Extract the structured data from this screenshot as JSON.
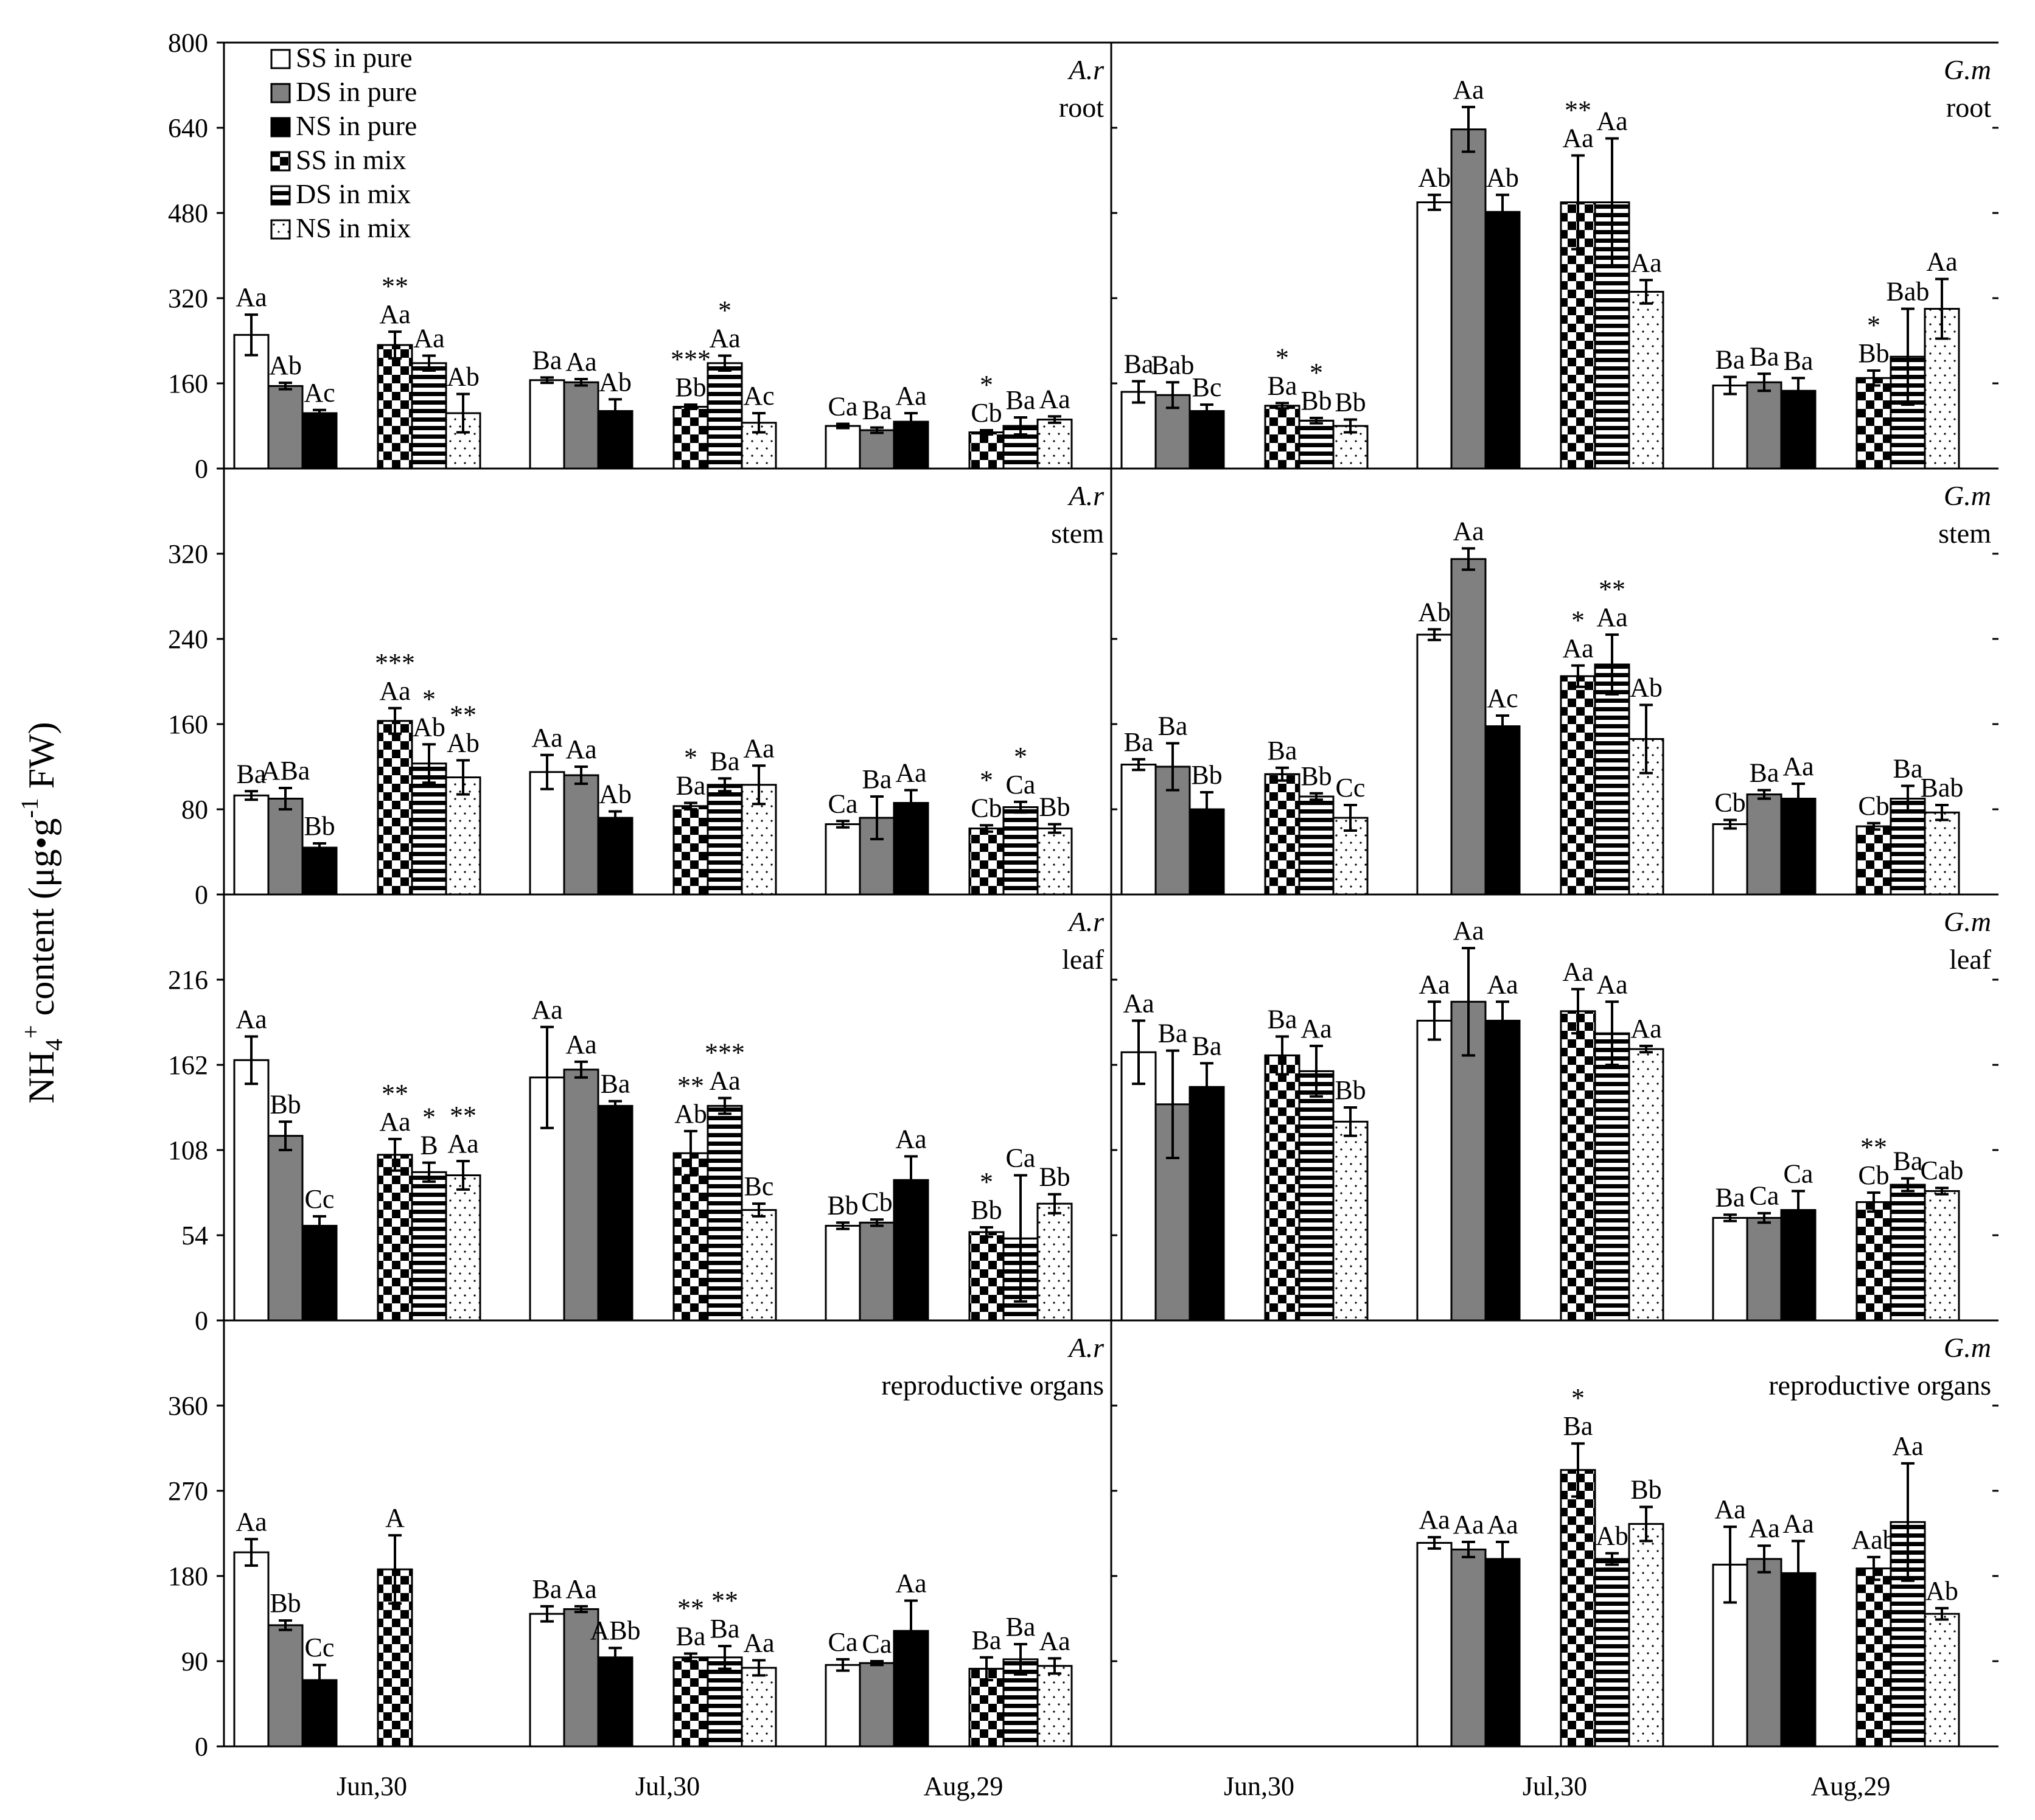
{
  "figure": {
    "ylabel": "NH4+ content (μg•g-1 FW)",
    "ylabel_main": "NH",
    "ylabel_sub": "4",
    "ylabel_sup1": "+",
    "ylabel_mid": " content (μg•g",
    "ylabel_sup2": "-1",
    "ylabel_end": " FW)",
    "dates": [
      "Jun,30",
      "Jul,30",
      "Aug,29"
    ]
  },
  "legend": [
    "SS in pure",
    "DS in pure",
    "NS in pure",
    "SS in mix",
    "DS in mix",
    "NS in mix"
  ],
  "chart_data": [
    {
      "type": "bar",
      "species": "A.r",
      "organ": "root",
      "ylim": [
        0,
        800
      ],
      "yticks": [
        0,
        160,
        320,
        480,
        640,
        800
      ],
      "categories": [
        "Jun,30",
        "Jul,30",
        "Aug,29"
      ],
      "series": [
        {
          "name": "SS in pure",
          "values": [
            251,
            166,
            80
          ],
          "errors": [
            38,
            5,
            4
          ],
          "labels": [
            "Aa",
            "Ba",
            "Ca"
          ]
        },
        {
          "name": "DS in pure",
          "values": [
            155,
            162,
            72
          ],
          "errors": [
            6,
            6,
            5
          ],
          "labels": [
            "Ab",
            "Aa",
            "Ba"
          ]
        },
        {
          "name": "NS in pure",
          "values": [
            104,
            108,
            88
          ],
          "errors": [
            6,
            22,
            16
          ],
          "labels": [
            "Ac",
            "Ab",
            "Aa"
          ]
        },
        {
          "name": "SS in mix",
          "values": [
            232,
            116,
            68
          ],
          "errors": [
            25,
            4,
            4
          ],
          "labels": [
            "Aa",
            "Bb",
            "Cb"
          ]
        },
        {
          "name": "DS in mix",
          "values": [
            198,
            198,
            80
          ],
          "errors": [
            14,
            14,
            16
          ],
          "labels": [
            "Aa",
            "Aa",
            "Ba"
          ]
        },
        {
          "name": "NS in mix",
          "values": [
            104,
            86,
            92
          ],
          "errors": [
            36,
            18,
            6
          ],
          "labels": [
            "Ab",
            "Ac",
            "Aa"
          ]
        }
      ],
      "significance": [
        {
          "category": "Jun,30",
          "text": "**"
        },
        {
          "category": "Jul,30",
          "text": "***"
        },
        {
          "category": "Jul,30",
          "text": "*"
        },
        {
          "category": "Aug,29",
          "text": "*"
        }
      ]
    },
    {
      "type": "bar",
      "species": "G.m",
      "organ": "root",
      "ylim": [
        0,
        800
      ],
      "yticks": [
        0,
        160,
        320,
        480,
        640,
        800
      ],
      "categories": [
        "Jun,30",
        "Jul,30",
        "Aug,29"
      ],
      "series": [
        {
          "name": "SS in pure",
          "values": [
            144,
            500,
            156
          ],
          "errors": [
            20,
            14,
            16
          ],
          "labels": [
            "Ba",
            "Ab",
            "Ba"
          ]
        },
        {
          "name": "DS in pure",
          "values": [
            138,
            637,
            162
          ],
          "errors": [
            24,
            42,
            16
          ],
          "labels": [
            "Bab",
            "Aa",
            "Ba"
          ]
        },
        {
          "name": "NS in pure",
          "values": [
            108,
            482,
            146
          ],
          "errors": [
            12,
            32,
            24
          ],
          "labels": [
            "Bc",
            "Ab",
            "Ba"
          ]
        },
        {
          "name": "SS in mix",
          "values": [
            118,
            500,
            170
          ],
          "errors": [
            5,
            88,
            14
          ],
          "labels": [
            "Ba",
            "Aa",
            "Bb"
          ]
        },
        {
          "name": "DS in mix",
          "values": [
            90,
            500,
            210
          ],
          "errors": [
            5,
            120,
            90
          ],
          "labels": [
            "Bb",
            "Aa",
            "Bab"
          ]
        },
        {
          "name": "NS in mix",
          "values": [
            80,
            332,
            300
          ],
          "errors": [
            12,
            22,
            56
          ],
          "labels": [
            "Bb",
            "Aa",
            "Aa"
          ]
        }
      ],
      "significance": [
        {
          "category": "Jun,30",
          "text": "*"
        },
        {
          "category": "Jun,30",
          "text": "*"
        },
        {
          "category": "Jul,30",
          "text": "**"
        },
        {
          "category": "Aug,29",
          "text": "*"
        }
      ]
    },
    {
      "type": "bar",
      "species": "A.r",
      "organ": "stem",
      "ylim": [
        0,
        400
      ],
      "yticks": [
        0,
        80,
        160,
        240,
        320
      ],
      "categories": [
        "Jun,30",
        "Jul,30",
        "Aug,29"
      ],
      "series": [
        {
          "name": "SS in pure",
          "values": [
            93,
            115,
            66
          ],
          "errors": [
            4,
            16,
            3
          ],
          "labels": [
            "Ba",
            "Aa",
            "Ca"
          ]
        },
        {
          "name": "DS in pure",
          "values": [
            90,
            112,
            72
          ],
          "errors": [
            10,
            8,
            20
          ],
          "labels": [
            "ABa",
            "Aa",
            "Ba"
          ]
        },
        {
          "name": "NS in pure",
          "values": [
            44,
            72,
            86
          ],
          "errors": [
            4,
            6,
            12
          ],
          "labels": [
            "Bb",
            "Ab",
            "Aa"
          ]
        },
        {
          "name": "SS in mix",
          "values": [
            163,
            83,
            62
          ],
          "errors": [
            12,
            3,
            3
          ],
          "labels": [
            "Aa",
            "Ba",
            "Cb"
          ]
        },
        {
          "name": "DS in mix",
          "values": [
            123,
            103,
            82
          ],
          "errors": [
            18,
            6,
            5
          ],
          "labels": [
            "Ab",
            "Ba",
            "Ca"
          ]
        },
        {
          "name": "NS in mix",
          "values": [
            110,
            103,
            62
          ],
          "errors": [
            16,
            18,
            4
          ],
          "labels": [
            "Ab",
            "Aa",
            "Bb"
          ]
        }
      ],
      "significance": [
        {
          "category": "Jun,30",
          "text": "***"
        },
        {
          "category": "Jun,30",
          "text": "*"
        },
        {
          "category": "Jun,30",
          "text": "**"
        },
        {
          "category": "Jul,30",
          "text": "*"
        },
        {
          "category": "Aug,29",
          "text": "*"
        },
        {
          "category": "Aug,29",
          "text": "*"
        }
      ]
    },
    {
      "type": "bar",
      "species": "G.m",
      "organ": "stem",
      "ylim": [
        0,
        400
      ],
      "yticks": [
        0,
        80,
        160,
        240,
        320
      ],
      "categories": [
        "Jun,30",
        "Jul,30",
        "Aug,29"
      ],
      "series": [
        {
          "name": "SS in pure",
          "values": [
            122,
            244,
            66
          ],
          "errors": [
            5,
            5,
            4
          ],
          "labels": [
            "Ba",
            "Ab",
            "Cb"
          ]
        },
        {
          "name": "DS in pure",
          "values": [
            120,
            315,
            94
          ],
          "errors": [
            22,
            10,
            4
          ],
          "labels": [
            "Ba",
            "Aa",
            "Ba"
          ]
        },
        {
          "name": "NS in pure",
          "values": [
            80,
            158,
            90
          ],
          "errors": [
            16,
            10,
            14
          ],
          "labels": [
            "Bb",
            "Ac",
            "Aa"
          ]
        },
        {
          "name": "SS in mix",
          "values": [
            113,
            205,
            64
          ],
          "errors": [
            6,
            10,
            3
          ],
          "labels": [
            "Ba",
            "Aa",
            "Cb"
          ]
        },
        {
          "name": "DS in mix",
          "values": [
            92,
            216,
            90
          ],
          "errors": [
            3,
            28,
            12
          ],
          "labels": [
            "Bb",
            "Aa",
            "Ba"
          ]
        },
        {
          "name": "NS in mix",
          "values": [
            72,
            146,
            77
          ],
          "errors": [
            12,
            32,
            7
          ],
          "labels": [
            "Cc",
            "Ab",
            "Bab"
          ]
        }
      ],
      "significance": [
        {
          "category": "Jul,30",
          "text": "*"
        },
        {
          "category": "Jul,30",
          "text": "**"
        }
      ]
    },
    {
      "type": "bar",
      "species": "A.r",
      "organ": "leaf",
      "ylim": [
        0,
        270
      ],
      "yticks": [
        0,
        54,
        108,
        162,
        216
      ],
      "categories": [
        "Jun,30",
        "Jul,30",
        "Aug,29"
      ],
      "series": [
        {
          "name": "SS in pure",
          "values": [
            165,
            154,
            60
          ],
          "errors": [
            15,
            32,
            2
          ],
          "labels": [
            "Aa",
            "Aa",
            "Bb"
          ]
        },
        {
          "name": "DS in pure",
          "values": [
            117,
            159,
            62
          ],
          "errors": [
            9,
            5,
            2
          ],
          "labels": [
            "Bb",
            "Aa",
            "Cb"
          ]
        },
        {
          "name": "NS in pure",
          "values": [
            60,
            136,
            89
          ],
          "errors": [
            6,
            3,
            15
          ],
          "labels": [
            "Cc",
            "Ba",
            "Aa"
          ]
        },
        {
          "name": "SS in mix",
          "values": [
            105,
            106,
            56
          ],
          "errors": [
            10,
            14,
            3
          ],
          "labels": [
            "Aa",
            "Ab",
            "Bb"
          ]
        },
        {
          "name": "DS in mix",
          "values": [
            94,
            136,
            52
          ],
          "errors": [
            6,
            5,
            40
          ],
          "labels": [
            "B",
            "Aa",
            "Ca"
          ]
        },
        {
          "name": "NS in mix",
          "values": [
            92,
            70,
            74
          ],
          "errors": [
            9,
            4,
            6
          ],
          "labels": [
            "Aa",
            "Bc",
            "Bb"
          ]
        }
      ],
      "significance": [
        {
          "category": "Jun,30",
          "text": "**"
        },
        {
          "category": "Jun,30",
          "text": "*"
        },
        {
          "category": "Jun,30",
          "text": "**"
        },
        {
          "category": "Jul,30",
          "text": "**"
        },
        {
          "category": "Jul,30",
          "text": "***"
        },
        {
          "category": "Aug,29",
          "text": "*"
        }
      ]
    },
    {
      "type": "bar",
      "species": "G.m",
      "organ": "leaf",
      "ylim": [
        0,
        270
      ],
      "yticks": [
        0,
        54,
        108,
        162,
        216
      ],
      "categories": [
        "Jun,30",
        "Jul,30",
        "Aug,29"
      ],
      "series": [
        {
          "name": "SS in pure",
          "values": [
            170,
            190,
            65
          ],
          "errors": [
            20,
            12,
            2
          ],
          "labels": [
            "Aa",
            "Aa",
            "Ba"
          ]
        },
        {
          "name": "DS in pure",
          "values": [
            137,
            202,
            65
          ],
          "errors": [
            34,
            34,
            3
          ],
          "labels": [
            "Ba",
            "Aa",
            "Ca"
          ]
        },
        {
          "name": "NS in pure",
          "values": [
            148,
            190,
            70
          ],
          "errors": [
            15,
            12,
            12
          ],
          "labels": [
            "Ba",
            "Aa",
            "Ca"
          ]
        },
        {
          "name": "SS in mix",
          "values": [
            168,
            196,
            75
          ],
          "errors": [
            12,
            14,
            6
          ],
          "labels": [
            "Ba",
            "Aa",
            "Cb"
          ]
        },
        {
          "name": "DS in mix",
          "values": [
            158,
            182,
            86
          ],
          "errors": [
            16,
            20,
            4
          ],
          "labels": [
            "Aa",
            "Aa",
            "Ba"
          ]
        },
        {
          "name": "NS in mix",
          "values": [
            126,
            172,
            82
          ],
          "errors": [
            9,
            2,
            2
          ],
          "labels": [
            "Bb",
            "Aa",
            "Cab"
          ]
        }
      ],
      "significance": [
        {
          "category": "Aug,29",
          "text": "**"
        }
      ]
    },
    {
      "type": "bar",
      "species": "A.r",
      "organ": "reproductive organs",
      "ylim": [
        0,
        450
      ],
      "yticks": [
        0,
        90,
        180,
        270,
        360
      ],
      "categories": [
        "Jun,30",
        "Jul,30",
        "Aug,29"
      ],
      "series": [
        {
          "name": "SS in pure",
          "values": [
            205,
            140,
            86
          ],
          "errors": [
            14,
            8,
            6
          ],
          "labels": [
            "Aa",
            "Ba",
            "Ca"
          ]
        },
        {
          "name": "DS in pure",
          "values": [
            128,
            145,
            88
          ],
          "errors": [
            5,
            3,
            2
          ],
          "labels": [
            "Bb",
            "Aa",
            "Ca"
          ]
        },
        {
          "name": "NS in pure",
          "values": [
            70,
            94,
            122
          ],
          "errors": [
            16,
            10,
            32
          ],
          "labels": [
            "Cc",
            "ABb",
            "Aa"
          ]
        },
        {
          "name": "SS in mix",
          "values": [
            187,
            94,
            82
          ],
          "errors": [
            36,
            4,
            12
          ],
          "labels": [
            "A",
            "Ba",
            "Ba"
          ]
        },
        {
          "name": "DS in mix",
          "values": [
            null,
            94,
            92
          ],
          "errors": [
            null,
            12,
            16
          ],
          "labels": [
            "",
            "Ba",
            "Ba"
          ]
        },
        {
          "name": "NS in mix",
          "values": [
            null,
            83,
            85
          ],
          "errors": [
            null,
            8,
            8
          ],
          "labels": [
            "",
            "Aa",
            "Aa"
          ]
        }
      ],
      "significance": [
        {
          "category": "Jul,30",
          "text": "**"
        },
        {
          "category": "Jul,30",
          "text": "**"
        }
      ]
    },
    {
      "type": "bar",
      "species": "G.m",
      "organ": "reproductive organs",
      "ylim": [
        0,
        450
      ],
      "yticks": [
        0,
        90,
        180,
        270,
        360
      ],
      "categories": [
        "Jun,30",
        "Jul,30",
        "Aug,29"
      ],
      "series": [
        {
          "name": "SS in pure",
          "values": [
            null,
            215,
            192
          ],
          "errors": [
            null,
            6,
            40
          ],
          "labels": [
            "",
            "Aa",
            "Aa"
          ]
        },
        {
          "name": "DS in pure",
          "values": [
            null,
            208,
            198
          ],
          "errors": [
            null,
            8,
            14
          ],
          "labels": [
            "",
            "Aa",
            "Aa"
          ]
        },
        {
          "name": "NS in pure",
          "values": [
            null,
            198,
            183
          ],
          "errors": [
            null,
            18,
            34
          ],
          "labels": [
            "",
            "Aa",
            "Aa"
          ]
        },
        {
          "name": "SS in mix",
          "values": [
            null,
            292,
            188
          ],
          "errors": [
            null,
            28,
            12
          ],
          "labels": [
            "",
            "Ba",
            "Aab"
          ]
        },
        {
          "name": "DS in mix",
          "values": [
            null,
            198,
            237
          ],
          "errors": [
            null,
            6,
            62
          ],
          "labels": [
            "",
            "Ab",
            "Aa"
          ]
        },
        {
          "name": "NS in mix",
          "values": [
            null,
            235,
            140
          ],
          "errors": [
            null,
            18,
            6
          ],
          "labels": [
            "",
            "Bb",
            "Ab"
          ]
        }
      ],
      "significance": [
        {
          "category": "Jul,30",
          "text": "*"
        }
      ]
    }
  ]
}
